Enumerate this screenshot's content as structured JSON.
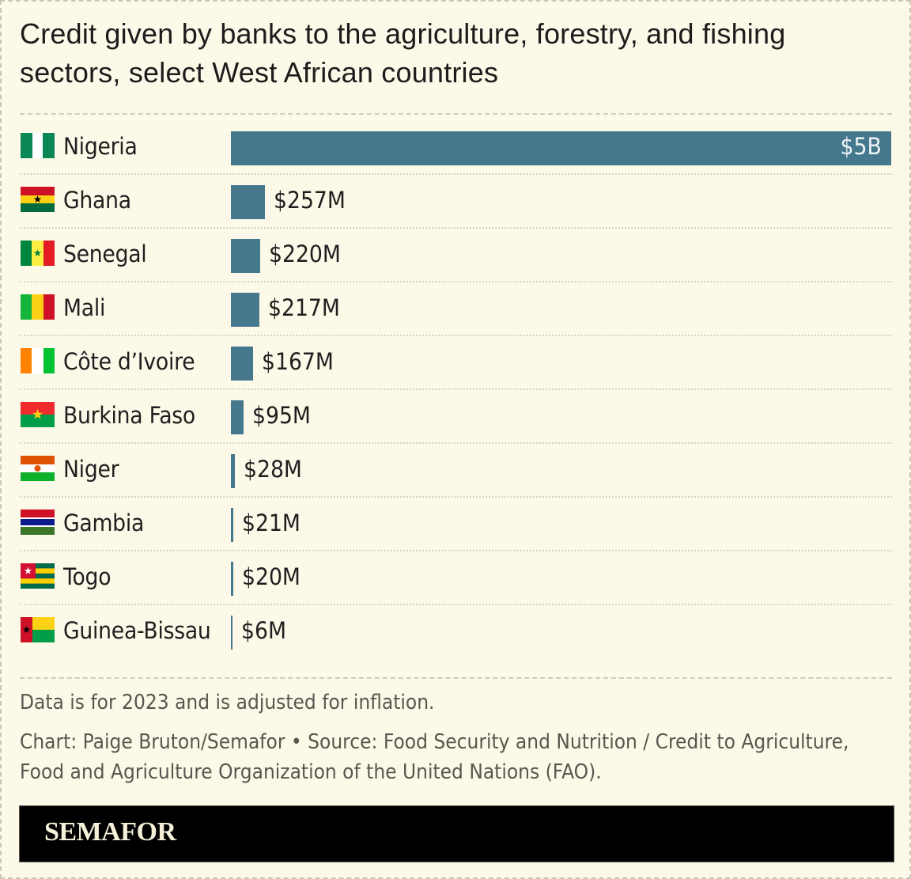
{
  "title": "Credit given by banks to the agriculture, forestry, and fishing sectors, select West African countries",
  "title_line1": "Credit given by banks to the agriculture, forestry, and fishing",
  "title_line2": "sectors, select West African countries",
  "bar_color": "#45788d",
  "background_color": "#fcf9e8",
  "rows": [
    {
      "country": "Nigeria",
      "flag": "nigeria-flag",
      "value_label": "$5B",
      "value": 5000
    },
    {
      "country": "Ghana",
      "flag": "ghana-flag",
      "value_label": "$257M",
      "value": 257
    },
    {
      "country": "Senegal",
      "flag": "senegal-flag",
      "value_label": "$220M",
      "value": 220
    },
    {
      "country": "Mali",
      "flag": "mali-flag",
      "value_label": "$217M",
      "value": 217
    },
    {
      "country": "Côte d’Ivoire",
      "flag": "cote-divoire-flag",
      "value_label": "$167M",
      "value": 167
    },
    {
      "country": "Burkina Faso",
      "flag": "burkina-faso-flag",
      "value_label": "$95M",
      "value": 95
    },
    {
      "country": "Niger",
      "flag": "niger-flag",
      "value_label": "$28M",
      "value": 28
    },
    {
      "country": "Gambia",
      "flag": "gambia-flag",
      "value_label": "$21M",
      "value": 21
    },
    {
      "country": "Togo",
      "flag": "togo-flag",
      "value_label": "$20M",
      "value": 20
    },
    {
      "country": "Guinea-Bissau",
      "flag": "guinea-bissau-flag",
      "value_label": "$6M",
      "value": 6
    }
  ],
  "notes": {
    "data_note": "Data is for 2023 and is adjusted for inflation.",
    "credit_line1": "Chart: Paige Bruton/Semafor  • Source: Food Security and Nutrition / Credit to Agriculture,",
    "credit_line2": "Food and Agriculture Organization of the United Nations (FAO)."
  },
  "logo": "SEMAFOR",
  "chart_data": {
    "type": "bar",
    "orientation": "horizontal",
    "title": "Credit given by banks to the agriculture, forestry, and fishing sectors, select West African countries",
    "categories": [
      "Nigeria",
      "Ghana",
      "Senegal",
      "Mali",
      "Côte d’Ivoire",
      "Burkina Faso",
      "Niger",
      "Gambia",
      "Togo",
      "Guinea-Bissau"
    ],
    "values": [
      5000,
      257,
      220,
      217,
      167,
      95,
      28,
      21,
      20,
      6
    ],
    "value_labels": [
      "$5B",
      "$257M",
      "$220M",
      "$217M",
      "$167M",
      "$95M",
      "$28M",
      "$21M",
      "$20M",
      "$6M"
    ],
    "unit": "USD millions",
    "xlabel": "",
    "ylabel": "",
    "grid": false,
    "legend": null,
    "annotations": [
      "Data is for 2023 and is adjusted for inflation."
    ]
  }
}
